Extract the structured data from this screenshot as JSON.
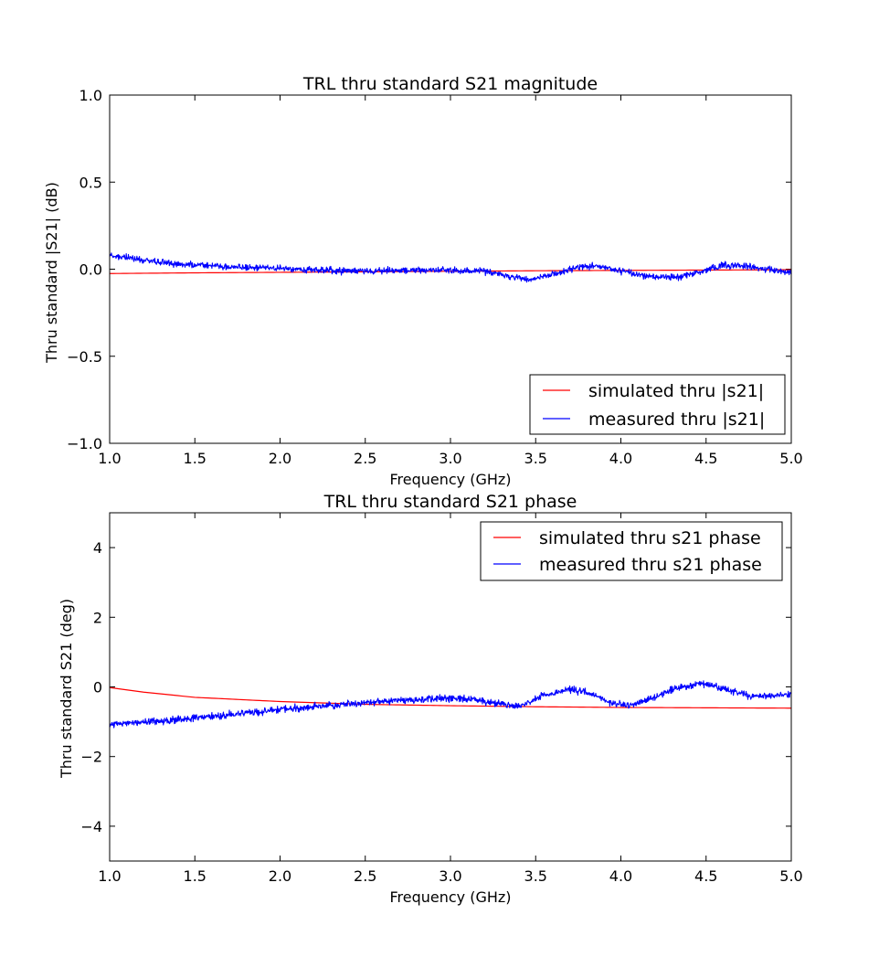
{
  "chart_data": [
    {
      "type": "line",
      "title": "TRL thru standard S21 magnitude",
      "xlabel": "Frequency (GHz)",
      "ylabel": "Thru standard |S21| (dB)",
      "xlim": [
        1.0,
        5.0
      ],
      "ylim": [
        -1.0,
        1.0
      ],
      "xticks": [
        "1.0",
        "1.5",
        "2.0",
        "2.5",
        "3.0",
        "3.5",
        "4.0",
        "4.5",
        "5.0"
      ],
      "yticks": [
        "−1.0",
        "−0.5",
        "0.0",
        "0.5",
        "1.0"
      ],
      "legend_position": "lower right",
      "grid": false,
      "series": [
        {
          "name": "simulated thru |s21|",
          "color": "#ff0000",
          "x": [
            1.0,
            1.5,
            2.0,
            2.5,
            3.0,
            3.5,
            4.0,
            4.5,
            5.0
          ],
          "y": [
            -0.025,
            -0.021,
            -0.018,
            -0.015,
            -0.012,
            -0.009,
            -0.007,
            -0.005,
            -0.003
          ]
        },
        {
          "name": "measured thru |s21|",
          "color": "#0000ff",
          "x": [
            1.0,
            1.2,
            1.4,
            1.6,
            1.8,
            2.0,
            2.2,
            2.4,
            2.6,
            2.8,
            3.0,
            3.2,
            3.3,
            3.45,
            3.6,
            3.75,
            3.85,
            4.0,
            4.15,
            4.3,
            4.45,
            4.6,
            4.7,
            4.85,
            5.0
          ],
          "y": [
            0.08,
            0.05,
            0.03,
            0.02,
            0.01,
            0.005,
            -0.005,
            -0.01,
            -0.01,
            -0.005,
            -0.005,
            -0.01,
            -0.03,
            -0.06,
            -0.03,
            0.01,
            0.02,
            -0.01,
            -0.04,
            -0.05,
            -0.02,
            0.02,
            0.02,
            0.0,
            -0.02
          ],
          "noise": 0.013
        }
      ]
    },
    {
      "type": "line",
      "title": "TRL thru standard S21 phase",
      "xlabel": "Frequency (GHz)",
      "ylabel": "Thru standard S21 (deg)",
      "xlim": [
        1.0,
        5.0
      ],
      "ylim": [
        -5,
        5
      ],
      "xticks": [
        "1.0",
        "1.5",
        "2.0",
        "2.5",
        "3.0",
        "3.5",
        "4.0",
        "4.5",
        "5.0"
      ],
      "yticks": [
        "−4",
        "−2",
        "0",
        "2",
        "4"
      ],
      "legend_position": "upper right",
      "grid": false,
      "series": [
        {
          "name": "simulated thru s21 phase",
          "color": "#ff0000",
          "x": [
            1.0,
            1.2,
            1.5,
            2.0,
            2.5,
            3.0,
            3.5,
            4.0,
            4.5,
            5.0
          ],
          "y": [
            -0.02,
            -0.15,
            -0.3,
            -0.42,
            -0.5,
            -0.54,
            -0.57,
            -0.59,
            -0.6,
            -0.61
          ]
        },
        {
          "name": "measured thru s21 phase",
          "color": "#0000ff",
          "x": [
            1.0,
            1.25,
            1.5,
            1.75,
            2.0,
            2.25,
            2.5,
            2.75,
            2.9,
            3.1,
            3.25,
            3.4,
            3.55,
            3.7,
            3.8,
            3.95,
            4.05,
            4.2,
            4.35,
            4.48,
            4.6,
            4.75,
            4.9,
            5.0
          ],
          "y": [
            -1.1,
            -1.0,
            -0.9,
            -0.78,
            -0.65,
            -0.55,
            -0.45,
            -0.38,
            -0.33,
            -0.32,
            -0.45,
            -0.55,
            -0.25,
            -0.08,
            -0.15,
            -0.45,
            -0.55,
            -0.3,
            0.0,
            0.1,
            -0.05,
            -0.25,
            -0.25,
            -0.2
          ],
          "noise": 0.07
        }
      ]
    }
  ]
}
